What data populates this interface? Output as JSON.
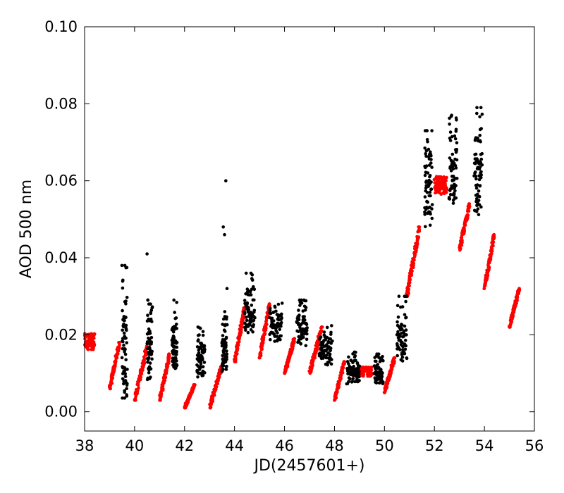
{
  "chart_data": {
    "type": "scatter",
    "xlabel": "JD(2457601+)",
    "ylabel": "AOD 500 nm",
    "xlim": [
      38,
      56
    ],
    "ylim": [
      -0.005,
      0.1
    ],
    "xticks": [
      38,
      40,
      42,
      44,
      46,
      48,
      50,
      52,
      54,
      56
    ],
    "yticks": [
      0.0,
      0.02,
      0.04,
      0.06,
      0.08,
      0.1
    ],
    "xtick_labels": [
      "38",
      "40",
      "42",
      "44",
      "46",
      "48",
      "50",
      "52",
      "54",
      "56"
    ],
    "ytick_labels": [
      "0.00",
      "0.02",
      "0.04",
      "0.06",
      "0.08",
      "0.10"
    ],
    "grid": false,
    "series": [
      {
        "color": "#ff0000",
        "clusters": [
          {
            "x": [
              38.0,
              38.4
            ],
            "y": [
              0.014,
              0.021
            ],
            "trend": "flat"
          },
          {
            "x": [
              39.0,
              39.4
            ],
            "y": [
              0.006,
              0.018
            ],
            "trend": "rise"
          },
          {
            "x": [
              40.0,
              40.5
            ],
            "y": [
              0.003,
              0.017
            ],
            "trend": "rise"
          },
          {
            "x": [
              41.0,
              41.4
            ],
            "y": [
              0.003,
              0.015
            ],
            "trend": "rise"
          },
          {
            "x": [
              42.0,
              42.4
            ],
            "y": [
              0.001,
              0.007
            ],
            "trend": "rise"
          },
          {
            "x": [
              43.0,
              43.5
            ],
            "y": [
              0.001,
              0.012
            ],
            "trend": "rise"
          },
          {
            "x": [
              44.0,
              44.4
            ],
            "y": [
              0.013,
              0.027
            ],
            "trend": "rise"
          },
          {
            "x": [
              45.0,
              45.4
            ],
            "y": [
              0.014,
              0.028
            ],
            "trend": "rise"
          },
          {
            "x": [
              46.0,
              46.4
            ],
            "y": [
              0.01,
              0.019
            ],
            "trend": "rise"
          },
          {
            "x": [
              47.0,
              47.5
            ],
            "y": [
              0.01,
              0.022
            ],
            "trend": "rise"
          },
          {
            "x": [
              48.0,
              48.4
            ],
            "y": [
              0.003,
              0.013
            ],
            "trend": "rise"
          },
          {
            "x": [
              48.7,
              49.5
            ],
            "y": [
              0.008,
              0.012
            ],
            "trend": "flat"
          },
          {
            "x": [
              50.0,
              50.4
            ],
            "y": [
              0.005,
              0.014
            ],
            "trend": "rise"
          },
          {
            "x": [
              50.9,
              51.4
            ],
            "y": [
              0.03,
              0.048
            ],
            "trend": "rise"
          },
          {
            "x": [
              52.0,
              52.5
            ],
            "y": [
              0.054,
              0.062
            ],
            "trend": "flat"
          },
          {
            "x": [
              53.0,
              53.4
            ],
            "y": [
              0.042,
              0.054
            ],
            "trend": "rise"
          },
          {
            "x": [
              54.0,
              54.4
            ],
            "y": [
              0.032,
              0.046
            ],
            "trend": "rise"
          },
          {
            "x": [
              55.0,
              55.4
            ],
            "y": [
              0.022,
              0.032
            ],
            "trend": "rise"
          }
        ]
      },
      {
        "color": "#000000",
        "clusters": [
          {
            "x": [
              39.5,
              39.7
            ],
            "y": [
              0.002,
              0.038
            ],
            "trend": "scatter"
          },
          {
            "x": [
              40.5,
              40.7
            ],
            "y": [
              0.008,
              0.029
            ],
            "trend": "scatter"
          },
          {
            "x": [
              41.5,
              41.7
            ],
            "y": [
              0.01,
              0.029
            ],
            "trend": "scatter"
          },
          {
            "x": [
              42.5,
              42.8
            ],
            "y": [
              0.009,
              0.022
            ],
            "trend": "scatter"
          },
          {
            "x": [
              43.5,
              43.7
            ],
            "y": [
              0.01,
              0.026
            ],
            "trend": "scatter"
          },
          {
            "x": [
              44.4,
              44.8
            ],
            "y": [
              0.02,
              0.036
            ],
            "trend": "scatter"
          },
          {
            "x": [
              45.4,
              45.9
            ],
            "y": [
              0.018,
              0.029
            ],
            "trend": "scatter"
          },
          {
            "x": [
              46.5,
              46.9
            ],
            "y": [
              0.017,
              0.029
            ],
            "trend": "scatter"
          },
          {
            "x": [
              47.4,
              47.9
            ],
            "y": [
              0.012,
              0.023
            ],
            "trend": "scatter"
          },
          {
            "x": [
              48.5,
              49.0
            ],
            "y": [
              0.007,
              0.016
            ],
            "trend": "scatter"
          },
          {
            "x": [
              49.6,
              49.95
            ],
            "y": [
              0.007,
              0.015
            ],
            "trend": "scatter"
          },
          {
            "x": [
              50.5,
              50.9
            ],
            "y": [
              0.013,
              0.03
            ],
            "trend": "scatter"
          },
          {
            "x": [
              51.6,
              51.9
            ],
            "y": [
              0.048,
              0.073
            ],
            "trend": "scatter"
          },
          {
            "x": [
              52.6,
              52.9
            ],
            "y": [
              0.054,
              0.077
            ],
            "trend": "scatter"
          },
          {
            "x": [
              53.6,
              53.9
            ],
            "y": [
              0.051,
              0.079
            ],
            "trend": "scatter"
          }
        ],
        "outliers": [
          {
            "x": 40.5,
            "y": 0.041
          },
          {
            "x": 43.55,
            "y": 0.048
          },
          {
            "x": 43.6,
            "y": 0.046
          },
          {
            "x": 43.65,
            "y": 0.06
          },
          {
            "x": 43.7,
            "y": 0.032
          }
        ]
      }
    ]
  }
}
